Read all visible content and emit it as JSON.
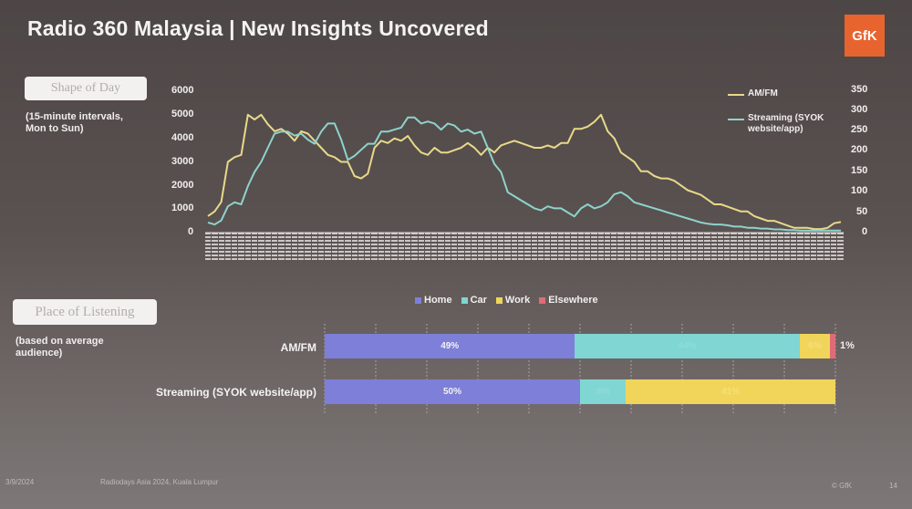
{
  "slide": {
    "title": "Radio 360 Malaysia | New Insights Uncovered",
    "logo_text": "GfK",
    "footer": {
      "date": "3/9/2024",
      "event": "Radiodays Asia 2024, Kuala Lumpur",
      "copyright": "© GfK",
      "page": "14"
    }
  },
  "section1": {
    "label": "Shape of Day",
    "note_line1": "(15-minute intervals,",
    "note_line2": "Mon to Sun)"
  },
  "section2": {
    "label": "Place of Listening",
    "note_line1": "(based on average",
    "note_line2": "audience)"
  },
  "colors": {
    "amfm": "#e8d98a",
    "streaming": "#8ed3cc",
    "home": "#7d7fd9",
    "car": "#7fd6d2",
    "work": "#f0d55a",
    "elsewhere": "#e06b78"
  },
  "chart_data": [
    {
      "type": "line",
      "title": "",
      "xlabel": "",
      "x_count": 96,
      "y_left": {
        "ticks": [
          "6000",
          "5000",
          "4000",
          "3000",
          "2000",
          "1000",
          "0"
        ],
        "lim": [
          0,
          6000
        ]
      },
      "y_right": {
        "ticks": [
          "350",
          "300",
          "250",
          "200",
          "150",
          "100",
          "50",
          "0"
        ],
        "lim": [
          0,
          350
        ]
      },
      "series": [
        {
          "name": "AM/FM",
          "axis": "left",
          "values": [
            700,
            900,
            1300,
            3000,
            3200,
            3300,
            5000,
            4800,
            5000,
            4600,
            4300,
            4400,
            4200,
            3900,
            4300,
            4200,
            3900,
            3600,
            3300,
            3200,
            3000,
            3000,
            2400,
            2300,
            2500,
            3600,
            3900,
            3800,
            4000,
            3900,
            4100,
            3700,
            3400,
            3300,
            3600,
            3400,
            3400,
            3500,
            3600,
            3800,
            3600,
            3300,
            3600,
            3400,
            3700,
            3800,
            3900,
            3800,
            3700,
            3600,
            3600,
            3700,
            3600,
            3800,
            3800,
            4400,
            4400,
            4500,
            4700,
            5000,
            4300,
            4000,
            3400,
            3200,
            3000,
            2600,
            2600,
            2400,
            2300,
            2300,
            2200,
            2000,
            1800,
            1700,
            1600,
            1400,
            1200,
            1200,
            1100,
            1000,
            900,
            900,
            700,
            600,
            500,
            500,
            400,
            300,
            200,
            200,
            200,
            150,
            150,
            200,
            400,
            450
          ]
        },
        {
          "name": "Streaming (SYOK website/app)",
          "axis": "right",
          "values": [
            25,
            20,
            30,
            65,
            75,
            70,
            115,
            150,
            175,
            210,
            245,
            250,
            250,
            240,
            245,
            230,
            220,
            250,
            270,
            270,
            230,
            180,
            190,
            205,
            220,
            220,
            250,
            250,
            255,
            260,
            285,
            285,
            270,
            275,
            270,
            255,
            270,
            265,
            250,
            255,
            245,
            250,
            210,
            170,
            150,
            100,
            90,
            80,
            70,
            60,
            55,
            65,
            60,
            60,
            50,
            40,
            60,
            70,
            60,
            65,
            75,
            95,
            100,
            90,
            75,
            70,
            65,
            60,
            55,
            50,
            45,
            40,
            35,
            30,
            25,
            22,
            20,
            20,
            18,
            15,
            15,
            12,
            12,
            10,
            10,
            8,
            8,
            6,
            6,
            5,
            5,
            5,
            5,
            5,
            5,
            5
          ]
        }
      ]
    },
    {
      "type": "bar",
      "orientation": "horizontal",
      "stacked": true,
      "categories": [
        "AM/FM",
        "Streaming (SYOK website/app)"
      ],
      "legend": [
        "Home",
        "Car",
        "Work",
        "Elsewhere"
      ],
      "series": [
        {
          "name": "Home",
          "values": [
            49,
            50
          ],
          "labels": [
            "49%",
            "50%"
          ]
        },
        {
          "name": "Car",
          "values": [
            44,
            9
          ],
          "labels": [
            "44%",
            "9%"
          ]
        },
        {
          "name": "Work",
          "values": [
            6,
            41
          ],
          "labels": [
            "6%",
            "41%"
          ]
        },
        {
          "name": "Elsewhere",
          "values": [
            1,
            0
          ],
          "labels": [
            "1%",
            ""
          ]
        }
      ]
    }
  ]
}
